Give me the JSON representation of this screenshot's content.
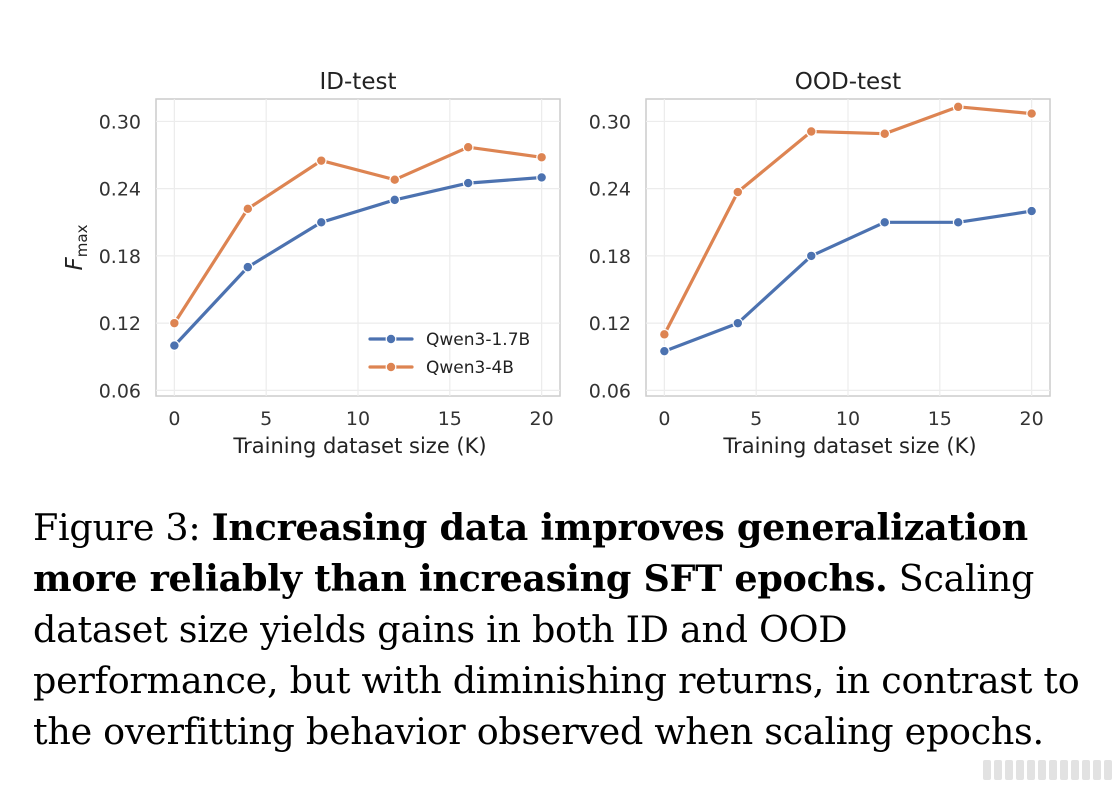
{
  "chart_data": [
    {
      "type": "line",
      "title": "ID-test",
      "xlabel": "Training dataset size (K)",
      "ylabel": "F_max",
      "ylabel_main": "F",
      "ylabel_sub": "max",
      "xlim": [
        -1,
        21
      ],
      "ylim": [
        0.055,
        0.32
      ],
      "xticks": [
        0,
        5,
        10,
        15,
        20
      ],
      "yticks": [
        0.06,
        0.12,
        0.18,
        0.24,
        0.3
      ],
      "ytick_labels": [
        "0.06",
        "0.12",
        "0.18",
        "0.24",
        "0.30"
      ],
      "grid": true,
      "legend": "lower-right",
      "series": [
        {
          "name": "Qwen3-1.7B",
          "color": "#4c72b0",
          "x": [
            0,
            4,
            8,
            12,
            16,
            20
          ],
          "y": [
            0.1,
            0.17,
            0.21,
            0.23,
            0.245,
            0.25
          ]
        },
        {
          "name": "Qwen3-4B",
          "color": "#dd8452",
          "x": [
            0,
            4,
            8,
            12,
            16,
            20
          ],
          "y": [
            0.12,
            0.222,
            0.265,
            0.248,
            0.277,
            0.268
          ]
        }
      ]
    },
    {
      "type": "line",
      "title": "OOD-test",
      "xlabel": "Training dataset size (K)",
      "xlim": [
        -1,
        21
      ],
      "ylim": [
        0.055,
        0.32
      ],
      "xticks": [
        0,
        5,
        10,
        15,
        20
      ],
      "yticks": [
        0.06,
        0.12,
        0.18,
        0.24,
        0.3
      ],
      "ytick_labels": [
        "0.06",
        "0.12",
        "0.18",
        "0.24",
        "0.30"
      ],
      "grid": true,
      "series": [
        {
          "name": "Qwen3-1.7B",
          "color": "#4c72b0",
          "x": [
            0,
            4,
            8,
            12,
            16,
            20
          ],
          "y": [
            0.095,
            0.12,
            0.18,
            0.21,
            0.21,
            0.22
          ]
        },
        {
          "name": "Qwen3-4B",
          "color": "#dd8452",
          "x": [
            0,
            4,
            8,
            12,
            16,
            20
          ],
          "y": [
            0.11,
            0.237,
            0.291,
            0.289,
            0.313,
            0.307
          ]
        }
      ]
    }
  ],
  "caption": {
    "label": "Figure 3:",
    "bold": "Increasing data improves generalization more reliably than increasing SFT epochs.",
    "text": "Scaling dataset size yields gains in both ID and OOD performance, but with diminishing returns, in contrast to the overfitting behavior observed when scaling epochs."
  }
}
